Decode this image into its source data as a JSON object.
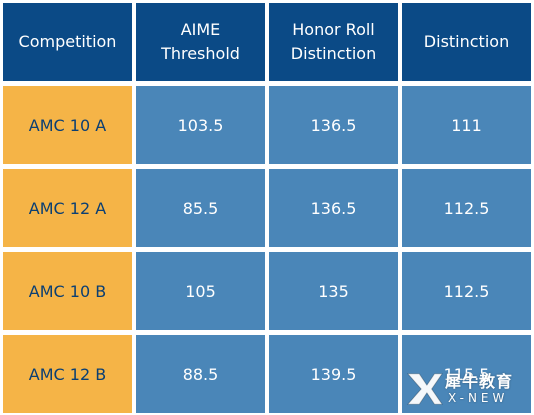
{
  "colors": {
    "header_bg": "#0b4a86",
    "header_text": "#ffffff",
    "row_label_bg": "#f5b447",
    "row_label_text": "#0b3f73",
    "value_bg": "#4a86b8",
    "value_text": "#ffffff"
  },
  "table": {
    "headers": [
      "Competition",
      "AIME\nThreshold",
      "Honor Roll\nDistinction",
      "Distinction"
    ],
    "rows": [
      [
        "AMC 10 A",
        "103.5",
        "136.5",
        "111"
      ],
      [
        "AMC 12 A",
        "85.5",
        "136.5",
        "112.5"
      ],
      [
        "AMC 10 B",
        "105",
        "135",
        "112.5"
      ],
      [
        "AMC 12 B",
        "88.5",
        "139.5",
        "115.5"
      ]
    ]
  },
  "watermark": {
    "cn_text": "犀牛教育",
    "en_text": "X-NEW",
    "icon": "rhino-x-logo-icon"
  }
}
